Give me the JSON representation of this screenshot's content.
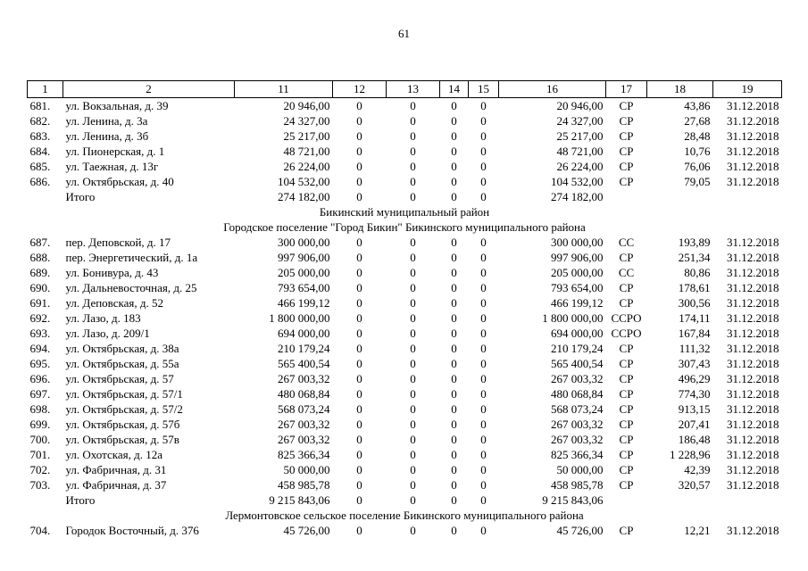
{
  "page": {
    "number": "61"
  },
  "table": {
    "columns": [
      "1",
      "2",
      "11",
      "12",
      "13",
      "14",
      "15",
      "16",
      "17",
      "18",
      "19"
    ],
    "total_label": "Итого",
    "rows": [
      {
        "type": "data",
        "num": "681.",
        "address": "ул. Вокзальная, д. 39",
        "c11": "20 946,00",
        "c12": "0",
        "c13": "0",
        "c14": "0",
        "c15": "0",
        "c16": "20 946,00",
        "c17": "СР",
        "c18": "43,86",
        "c19": "31.12.2018"
      },
      {
        "type": "data",
        "num": "682.",
        "address": "ул. Ленина, д. 3а",
        "c11": "24 327,00",
        "c12": "0",
        "c13": "0",
        "c14": "0",
        "c15": "0",
        "c16": "24 327,00",
        "c17": "СР",
        "c18": "27,68",
        "c19": "31.12.2018"
      },
      {
        "type": "data",
        "num": "683.",
        "address": "ул. Ленина, д. 3б",
        "c11": "25 217,00",
        "c12": "0",
        "c13": "0",
        "c14": "0",
        "c15": "0",
        "c16": "25 217,00",
        "c17": "СР",
        "c18": "28,48",
        "c19": "31.12.2018"
      },
      {
        "type": "data",
        "num": "684.",
        "address": "ул. Пионерская, д. 1",
        "c11": "48 721,00",
        "c12": "0",
        "c13": "0",
        "c14": "0",
        "c15": "0",
        "c16": "48 721,00",
        "c17": "СР",
        "c18": "10,76",
        "c19": "31.12.2018"
      },
      {
        "type": "data",
        "num": "685.",
        "address": "ул. Таежная, д. 13г",
        "c11": "26 224,00",
        "c12": "0",
        "c13": "0",
        "c14": "0",
        "c15": "0",
        "c16": "26 224,00",
        "c17": "СР",
        "c18": "76,06",
        "c19": "31.12.2018"
      },
      {
        "type": "data",
        "num": "686.",
        "address": "ул. Октябрьская, д. 40",
        "c11": "104 532,00",
        "c12": "0",
        "c13": "0",
        "c14": "0",
        "c15": "0",
        "c16": "104 532,00",
        "c17": "СР",
        "c18": "79,05",
        "c19": "31.12.2018"
      },
      {
        "type": "total",
        "c11": "274 182,00",
        "c12": "0",
        "c13": "0",
        "c14": "0",
        "c15": "0",
        "c16": "274 182,00",
        "c17": "",
        "c18": "",
        "c19": ""
      },
      {
        "type": "section",
        "text": "Бикинский муниципальный район"
      },
      {
        "type": "section",
        "text": "Городское поселение \"Город Бикин\" Бикинского муниципального района"
      },
      {
        "type": "data",
        "num": "687.",
        "address": "пер. Деповской, д. 17",
        "c11": "300 000,00",
        "c12": "0",
        "c13": "0",
        "c14": "0",
        "c15": "0",
        "c16": "300 000,00",
        "c17": "СС",
        "c18": "193,89",
        "c19": "31.12.2018"
      },
      {
        "type": "data",
        "num": "688.",
        "address": "пер. Энергетический, д. 1а",
        "c11": "997 906,00",
        "c12": "0",
        "c13": "0",
        "c14": "0",
        "c15": "0",
        "c16": "997 906,00",
        "c17": "СР",
        "c18": "251,34",
        "c19": "31.12.2018"
      },
      {
        "type": "data",
        "num": "689.",
        "address": "ул. Бонивура, д. 43",
        "c11": "205 000,00",
        "c12": "0",
        "c13": "0",
        "c14": "0",
        "c15": "0",
        "c16": "205 000,00",
        "c17": "СС",
        "c18": "80,86",
        "c19": "31.12.2018"
      },
      {
        "type": "data",
        "num": "690.",
        "address": "ул. Дальневосточная, д. 25",
        "c11": "793 654,00",
        "c12": "0",
        "c13": "0",
        "c14": "0",
        "c15": "0",
        "c16": "793 654,00",
        "c17": "СР",
        "c18": "178,61",
        "c19": "31.12.2018"
      },
      {
        "type": "data",
        "num": "691.",
        "address": "ул. Деповская, д. 52",
        "c11": "466 199,12",
        "c12": "0",
        "c13": "0",
        "c14": "0",
        "c15": "0",
        "c16": "466 199,12",
        "c17": "СР",
        "c18": "300,56",
        "c19": "31.12.2018"
      },
      {
        "type": "data",
        "num": "692.",
        "address": "ул. Лазо, д. 183",
        "c11": "1 800 000,00",
        "c12": "0",
        "c13": "0",
        "c14": "0",
        "c15": "0",
        "c16": "1 800 000,00",
        "c17": "ССРО",
        "c18": "174,11",
        "c19": "31.12.2018"
      },
      {
        "type": "data",
        "num": "693.",
        "address": "ул. Лазо, д. 209/1",
        "c11": "694 000,00",
        "c12": "0",
        "c13": "0",
        "c14": "0",
        "c15": "0",
        "c16": "694 000,00",
        "c17": "ССРО",
        "c18": "167,84",
        "c19": "31.12.2018"
      },
      {
        "type": "data",
        "num": "694.",
        "address": "ул. Октябрьская, д. 38а",
        "c11": "210 179,24",
        "c12": "0",
        "c13": "0",
        "c14": "0",
        "c15": "0",
        "c16": "210 179,24",
        "c17": "СР",
        "c18": "111,32",
        "c19": "31.12.2018"
      },
      {
        "type": "data",
        "num": "695.",
        "address": "ул. Октябрьская, д. 55а",
        "c11": "565 400,54",
        "c12": "0",
        "c13": "0",
        "c14": "0",
        "c15": "0",
        "c16": "565 400,54",
        "c17": "СР",
        "c18": "307,43",
        "c19": "31.12.2018"
      },
      {
        "type": "data",
        "num": "696.",
        "address": "ул. Октябрьская, д. 57",
        "c11": "267 003,32",
        "c12": "0",
        "c13": "0",
        "c14": "0",
        "c15": "0",
        "c16": "267 003,32",
        "c17": "СР",
        "c18": "496,29",
        "c19": "31.12.2018"
      },
      {
        "type": "data",
        "num": "697.",
        "address": "ул. Октябрьская, д. 57/1",
        "c11": "480 068,84",
        "c12": "0",
        "c13": "0",
        "c14": "0",
        "c15": "0",
        "c16": "480 068,84",
        "c17": "СР",
        "c18": "774,30",
        "c19": "31.12.2018"
      },
      {
        "type": "data",
        "num": "698.",
        "address": "ул. Октябрьская, д. 57/2",
        "c11": "568 073,24",
        "c12": "0",
        "c13": "0",
        "c14": "0",
        "c15": "0",
        "c16": "568 073,24",
        "c17": "СР",
        "c18": "913,15",
        "c19": "31.12.2018"
      },
      {
        "type": "data",
        "num": "699.",
        "address": "ул. Октябрьская, д. 57б",
        "c11": "267 003,32",
        "c12": "0",
        "c13": "0",
        "c14": "0",
        "c15": "0",
        "c16": "267 003,32",
        "c17": "СР",
        "c18": "207,41",
        "c19": "31.12.2018"
      },
      {
        "type": "data",
        "num": "700.",
        "address": "ул. Октябрьская, д. 57в",
        "c11": "267 003,32",
        "c12": "0",
        "c13": "0",
        "c14": "0",
        "c15": "0",
        "c16": "267 003,32",
        "c17": "СР",
        "c18": "186,48",
        "c19": "31.12.2018"
      },
      {
        "type": "data",
        "num": "701.",
        "address": "ул. Охотская, д. 12а",
        "c11": "825 366,34",
        "c12": "0",
        "c13": "0",
        "c14": "0",
        "c15": "0",
        "c16": "825 366,34",
        "c17": "СР",
        "c18": "1 228,96",
        "c19": "31.12.2018"
      },
      {
        "type": "data",
        "num": "702.",
        "address": "ул. Фабричная, д. 31",
        "c11": "50 000,00",
        "c12": "0",
        "c13": "0",
        "c14": "0",
        "c15": "0",
        "c16": "50 000,00",
        "c17": "СР",
        "c18": "42,39",
        "c19": "31.12.2018"
      },
      {
        "type": "data",
        "num": "703.",
        "address": "ул. Фабричная, д. 37",
        "c11": "458 985,78",
        "c12": "0",
        "c13": "0",
        "c14": "0",
        "c15": "0",
        "c16": "458 985,78",
        "c17": "СР",
        "c18": "320,57",
        "c19": "31.12.2018"
      },
      {
        "type": "total",
        "c11": "9 215 843,06",
        "c12": "0",
        "c13": "0",
        "c14": "0",
        "c15": "0",
        "c16": "9 215 843,06",
        "c17": "",
        "c18": "",
        "c19": ""
      },
      {
        "type": "section",
        "text": "Лермонтовское сельское поселение Бикинского муниципального района"
      },
      {
        "type": "data",
        "num": "704.",
        "address": "Городок Восточный, д. 376",
        "c11": "45 726,00",
        "c12": "0",
        "c13": "0",
        "c14": "0",
        "c15": "0",
        "c16": "45 726,00",
        "c17": "СР",
        "c18": "12,21",
        "c19": "31.12.2018"
      }
    ]
  }
}
